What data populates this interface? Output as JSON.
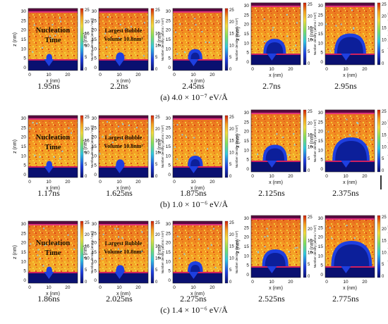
{
  "figure": {
    "z_axis_label": "z (nm)",
    "x_axis_label": "x (nm)",
    "colorbar_label": "Number density (atoms / nm³)",
    "colorbar_ticks": [
      "25",
      "20",
      "15",
      "10",
      "5",
      "0"
    ],
    "z_ticks": [
      "30",
      "25",
      "20",
      "15",
      "10",
      "5",
      "0"
    ],
    "x_ticks": [
      "0",
      "10",
      "20"
    ],
    "overlay_nucleation": [
      "Nucleation",
      "Time"
    ],
    "overlay_bubble": [
      "Largest Bubble",
      "Volume 10.8nm³"
    ],
    "colors": {
      "liquid_high": "#e03a10",
      "liquid_mid": "#f5a020",
      "liquid_low": "#f2dc40",
      "vapor": "#1e3fe0",
      "substrate": "#0a1070",
      "cap": "#5a0a40",
      "overlay_text": "#1a1000"
    },
    "rows": [
      {
        "caption": "(a) 4.0 × 10⁻⁷ eV/Å",
        "times": [
          "1.95ns",
          "2.2ns",
          "2.45ns",
          "2.7ns",
          "2.95ns"
        ],
        "bubble_rel_size": [
          0.05,
          0.12,
          0.28,
          0.5,
          0.75
        ]
      },
      {
        "caption": "(b) 1.0 × 10⁻⁶ eV/Å",
        "times": [
          "1.17ns",
          "1.625ns",
          "1.875ns",
          "2.125ns",
          "2.375ns"
        ],
        "bubble_rel_size": [
          0.05,
          0.12,
          0.3,
          0.55,
          0.9
        ]
      },
      {
        "caption": "(c) 1.4 × 10⁻⁶ eV/Å",
        "times": [
          "1.86ns",
          "2.025ns",
          "2.275ns",
          "2.525ns",
          "2.775ns"
        ],
        "bubble_rel_size": [
          0.05,
          0.12,
          0.3,
          0.6,
          1.0
        ]
      }
    ]
  }
}
